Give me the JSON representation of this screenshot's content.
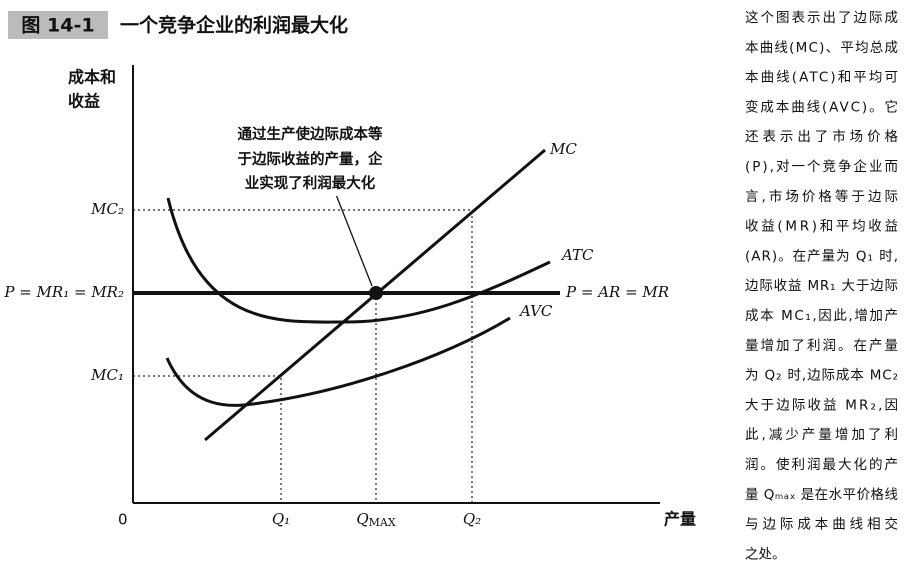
{
  "header": {
    "figure_label": "图 14-1",
    "title": "一个竞争企业的利润最大化"
  },
  "diagram": {
    "y_axis_label": [
      "成本和",
      "收益"
    ],
    "x_axis_label": "产量",
    "origin": "0",
    "y_labels": {
      "mc2": "MC₂",
      "price": "P = MR₁ = MR₂",
      "mc1": "MC₁"
    },
    "x_labels": {
      "q1": "Q₁",
      "q_max": {
        "main": "Q",
        "sub": "MAX"
      },
      "q2": "Q₂"
    },
    "curve_labels": {
      "mc": "MC",
      "atc": "ATC",
      "avc": "AVC",
      "price_line": "P = AR = MR"
    },
    "annotation": [
      "通过生产使边际成本等",
      "于边际收益的产量，企",
      "业实现了利润最大化"
    ]
  },
  "caption": [
    "这个图表示出了边际成",
    "本曲线(MC)、平均总成",
    "本曲线(ATC)和平均可",
    "变成本曲线(AVC)。它",
    "还表示出了市场价格",
    "(P),对一个竞争企业而",
    "言,市场价格等于边际",
    "收益(MR)和平均收益",
    "(AR)。在产量为 Q₁ 时,",
    "边际收益 MR₁ 大于边际",
    "成本 MC₁,因此,增加产",
    "量增加了利润。在产量",
    "为 Q₂ 时,边际成本 MC₂",
    "大于边际收益 MR₂,因",
    "此,减少产量增加了利",
    "润。使利润最大化的产",
    "量 Qₘₐₓ 是在水平价格线",
    "与边际成本曲线相交",
    "之处。"
  ]
}
